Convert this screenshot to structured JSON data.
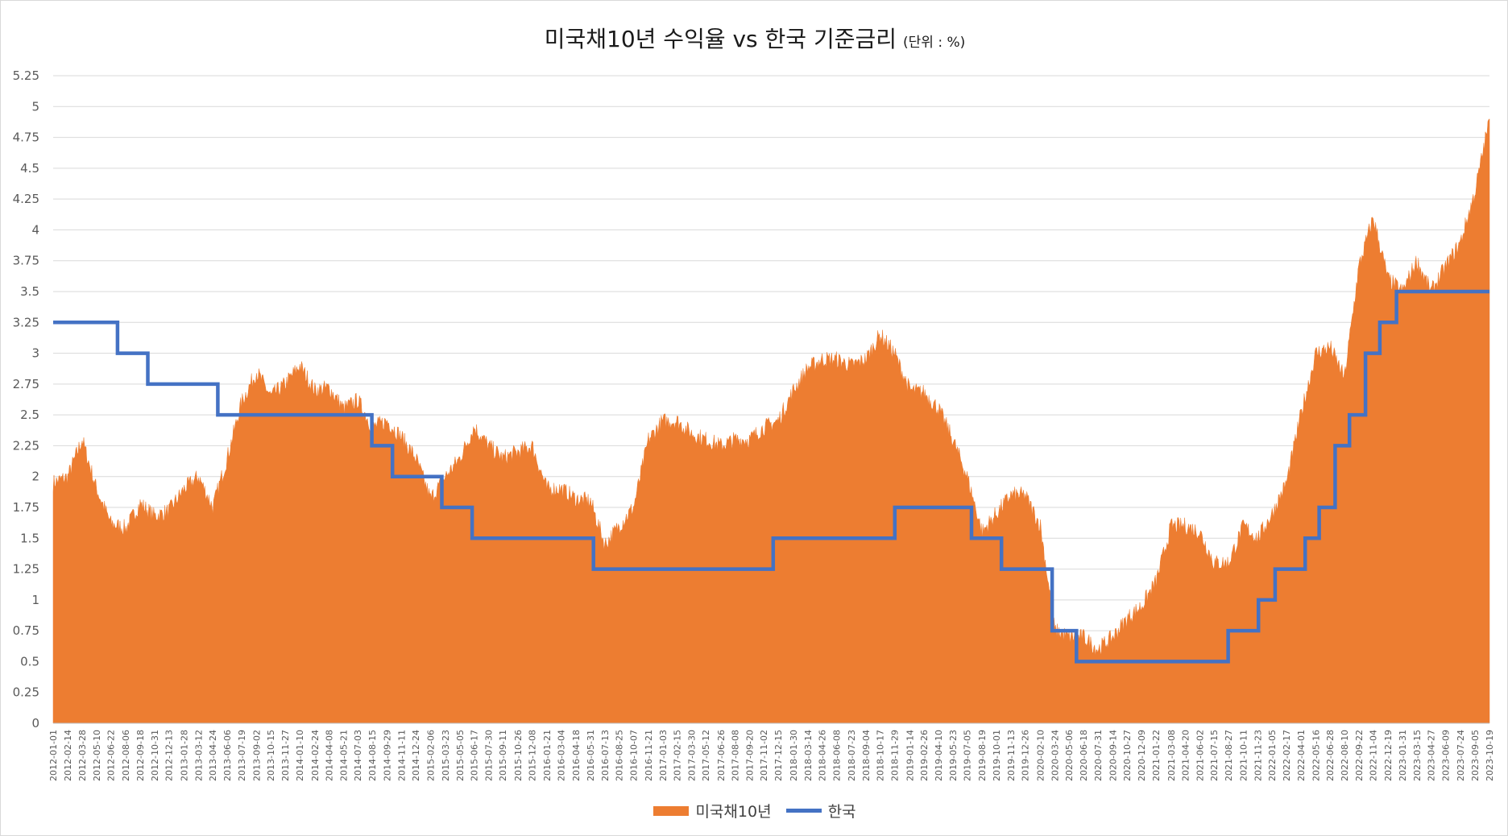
{
  "colors": {
    "us10y": "#ED7D31",
    "korea": "#4472C4",
    "grid": "#d9d9d9",
    "axis_text": "#595959"
  },
  "chart_data": {
    "type": "area",
    "title": "미국채10년 수익율 vs 한국 기준금리",
    "subtitle": "(단위 : %)",
    "xlabel": "",
    "ylabel": "",
    "ylim": [
      0,
      5.25
    ],
    "y_ticks": [
      "0",
      "0.25",
      "0.5",
      "0.75",
      "1",
      "1.25",
      "1.5",
      "1.75",
      "2",
      "2.25",
      "2.5",
      "2.75",
      "3",
      "3.25",
      "3.5",
      "3.75",
      "4",
      "4.25",
      "4.5",
      "4.75",
      "5",
      "5.25"
    ],
    "x_ticks": [
      "2012-01-01",
      "2012-02-14",
      "2012-03-28",
      "2012-05-10",
      "2012-06-22",
      "2012-08-06",
      "2012-09-18",
      "2012-10-31",
      "2012-12-13",
      "2013-01-28",
      "2013-03-12",
      "2013-04-24",
      "2013-06-06",
      "2013-07-19",
      "2013-09-02",
      "2013-10-15",
      "2013-11-27",
      "2014-01-10",
      "2014-02-24",
      "2014-04-08",
      "2014-05-21",
      "2014-07-03",
      "2014-08-15",
      "2014-09-29",
      "2014-11-11",
      "2014-12-24",
      "2015-02-06",
      "2015-03-23",
      "2015-05-05",
      "2015-06-17",
      "2015-07-30",
      "2015-09-11",
      "2015-10-26",
      "2015-12-08",
      "2016-01-21",
      "2016-03-04",
      "2016-04-18",
      "2016-05-31",
      "2016-07-13",
      "2016-08-25",
      "2016-10-07",
      "2016-11-21",
      "2017-01-03",
      "2017-02-15",
      "2017-03-30",
      "2017-05-12",
      "2017-06-26",
      "2017-08-08",
      "2017-09-20",
      "2017-11-02",
      "2017-12-15",
      "2018-01-30",
      "2018-03-14",
      "2018-04-26",
      "2018-06-08",
      "2018-07-23",
      "2018-09-04",
      "2018-10-17",
      "2018-11-29",
      "2019-01-14",
      "2019-02-26",
      "2019-04-10",
      "2019-05-23",
      "2019-07-05",
      "2019-08-19",
      "2019-10-01",
      "2019-11-13",
      "2019-12-26",
      "2020-02-10",
      "2020-03-24",
      "2020-05-06",
      "2020-06-18",
      "2020-07-31",
      "2020-09-14",
      "2020-10-27",
      "2020-12-09",
      "2021-01-22",
      "2021-03-08",
      "2021-04-20",
      "2021-06-02",
      "2021-07-15",
      "2021-08-27",
      "2021-10-11",
      "2021-11-23",
      "2022-01-05",
      "2022-02-17",
      "2022-04-01",
      "2022-05-16",
      "2022-06-28",
      "2022-08-10",
      "2022-09-22",
      "2022-11-04",
      "2022-12-19",
      "2023-01-31",
      "2023-03-15",
      "2023-04-27",
      "2023-06-09",
      "2023-07-24",
      "2023-09-05",
      "2023-10-19"
    ],
    "series": [
      {
        "name": "미국채10년",
        "type": "area",
        "x": [
          "2012-01-01",
          "2012-02-14",
          "2012-03-28",
          "2012-05-10",
          "2012-06-22",
          "2012-08-06",
          "2012-09-18",
          "2012-10-31",
          "2012-12-13",
          "2013-01-28",
          "2013-03-12",
          "2013-04-24",
          "2013-06-06",
          "2013-07-19",
          "2013-09-02",
          "2013-10-15",
          "2013-11-27",
          "2014-01-10",
          "2014-02-24",
          "2014-04-08",
          "2014-05-21",
          "2014-07-03",
          "2014-08-15",
          "2014-09-29",
          "2014-11-11",
          "2014-12-24",
          "2015-02-06",
          "2015-03-23",
          "2015-05-05",
          "2015-06-17",
          "2015-07-30",
          "2015-09-11",
          "2015-10-26",
          "2015-12-08",
          "2016-01-21",
          "2016-03-04",
          "2016-04-18",
          "2016-05-31",
          "2016-07-13",
          "2016-08-25",
          "2016-10-07",
          "2016-11-21",
          "2017-01-03",
          "2017-02-15",
          "2017-03-30",
          "2017-05-12",
          "2017-06-26",
          "2017-08-08",
          "2017-09-20",
          "2017-11-02",
          "2017-12-15",
          "2018-01-30",
          "2018-03-14",
          "2018-04-26",
          "2018-06-08",
          "2018-07-23",
          "2018-09-04",
          "2018-10-17",
          "2018-11-29",
          "2019-01-14",
          "2019-02-26",
          "2019-04-10",
          "2019-05-23",
          "2019-07-05",
          "2019-08-19",
          "2019-10-01",
          "2019-11-13",
          "2019-12-26",
          "2020-02-10",
          "2020-03-24",
          "2020-05-06",
          "2020-06-18",
          "2020-07-31",
          "2020-09-14",
          "2020-10-27",
          "2020-12-09",
          "2021-01-22",
          "2021-03-08",
          "2021-04-20",
          "2021-06-02",
          "2021-07-15",
          "2021-08-27",
          "2021-10-11",
          "2021-11-23",
          "2022-01-05",
          "2022-02-17",
          "2022-04-01",
          "2022-05-16",
          "2022-06-28",
          "2022-08-10",
          "2022-09-22",
          "2022-11-04",
          "2022-12-19",
          "2023-01-31",
          "2023-03-15",
          "2023-04-27",
          "2023-06-09",
          "2023-07-24",
          "2023-09-05",
          "2023-10-19"
        ],
        "values": [
          1.95,
          2.0,
          2.3,
          1.9,
          1.62,
          1.58,
          1.78,
          1.68,
          1.72,
          1.9,
          2.0,
          1.75,
          2.15,
          2.6,
          2.85,
          2.65,
          2.75,
          2.9,
          2.7,
          2.72,
          2.55,
          2.62,
          2.4,
          2.45,
          2.32,
          2.15,
          1.82,
          2.0,
          2.15,
          2.4,
          2.25,
          2.15,
          2.2,
          2.25,
          1.9,
          1.9,
          1.82,
          1.8,
          1.45,
          1.6,
          1.75,
          2.3,
          2.45,
          2.45,
          2.35,
          2.3,
          2.25,
          2.3,
          2.3,
          2.4,
          2.45,
          2.7,
          2.88,
          2.95,
          2.95,
          2.9,
          2.95,
          3.15,
          3.0,
          2.7,
          2.68,
          2.55,
          2.3,
          2.0,
          1.55,
          1.7,
          1.85,
          1.85,
          1.6,
          0.75,
          0.7,
          0.7,
          0.6,
          0.7,
          0.85,
          0.95,
          1.15,
          1.6,
          1.6,
          1.55,
          1.3,
          1.3,
          1.6,
          1.5,
          1.7,
          1.95,
          2.5,
          3.0,
          3.05,
          2.8,
          3.7,
          4.1,
          3.6,
          3.5,
          3.75,
          3.5,
          3.7,
          3.9,
          4.3,
          4.9
        ]
      },
      {
        "name": "한국",
        "type": "step",
        "changes": [
          {
            "date": "2012-01-01",
            "rate": 3.25
          },
          {
            "date": "2012-07-12",
            "rate": 3.0
          },
          {
            "date": "2012-10-11",
            "rate": 2.75
          },
          {
            "date": "2013-05-09",
            "rate": 2.5
          },
          {
            "date": "2014-08-14",
            "rate": 2.25
          },
          {
            "date": "2014-10-15",
            "rate": 2.0
          },
          {
            "date": "2015-03-12",
            "rate": 1.75
          },
          {
            "date": "2015-06-11",
            "rate": 1.5
          },
          {
            "date": "2016-06-09",
            "rate": 1.25
          },
          {
            "date": "2017-11-30",
            "rate": 1.5
          },
          {
            "date": "2018-11-30",
            "rate": 1.75
          },
          {
            "date": "2019-07-18",
            "rate": 1.5
          },
          {
            "date": "2019-10-16",
            "rate": 1.25
          },
          {
            "date": "2020-03-16",
            "rate": 0.75
          },
          {
            "date": "2020-05-28",
            "rate": 0.5
          },
          {
            "date": "2021-08-26",
            "rate": 0.75
          },
          {
            "date": "2021-11-25",
            "rate": 1.0
          },
          {
            "date": "2022-01-14",
            "rate": 1.25
          },
          {
            "date": "2022-04-14",
            "rate": 1.5
          },
          {
            "date": "2022-05-26",
            "rate": 1.75
          },
          {
            "date": "2022-07-13",
            "rate": 2.25
          },
          {
            "date": "2022-08-25",
            "rate": 2.5
          },
          {
            "date": "2022-10-12",
            "rate": 3.0
          },
          {
            "date": "2022-11-24",
            "rate": 3.25
          },
          {
            "date": "2023-01-13",
            "rate": 3.5
          }
        ]
      }
    ],
    "grid": true,
    "legend_position": "bottom-center"
  },
  "legend": {
    "series1": "미국채10년",
    "series2": "한국"
  }
}
